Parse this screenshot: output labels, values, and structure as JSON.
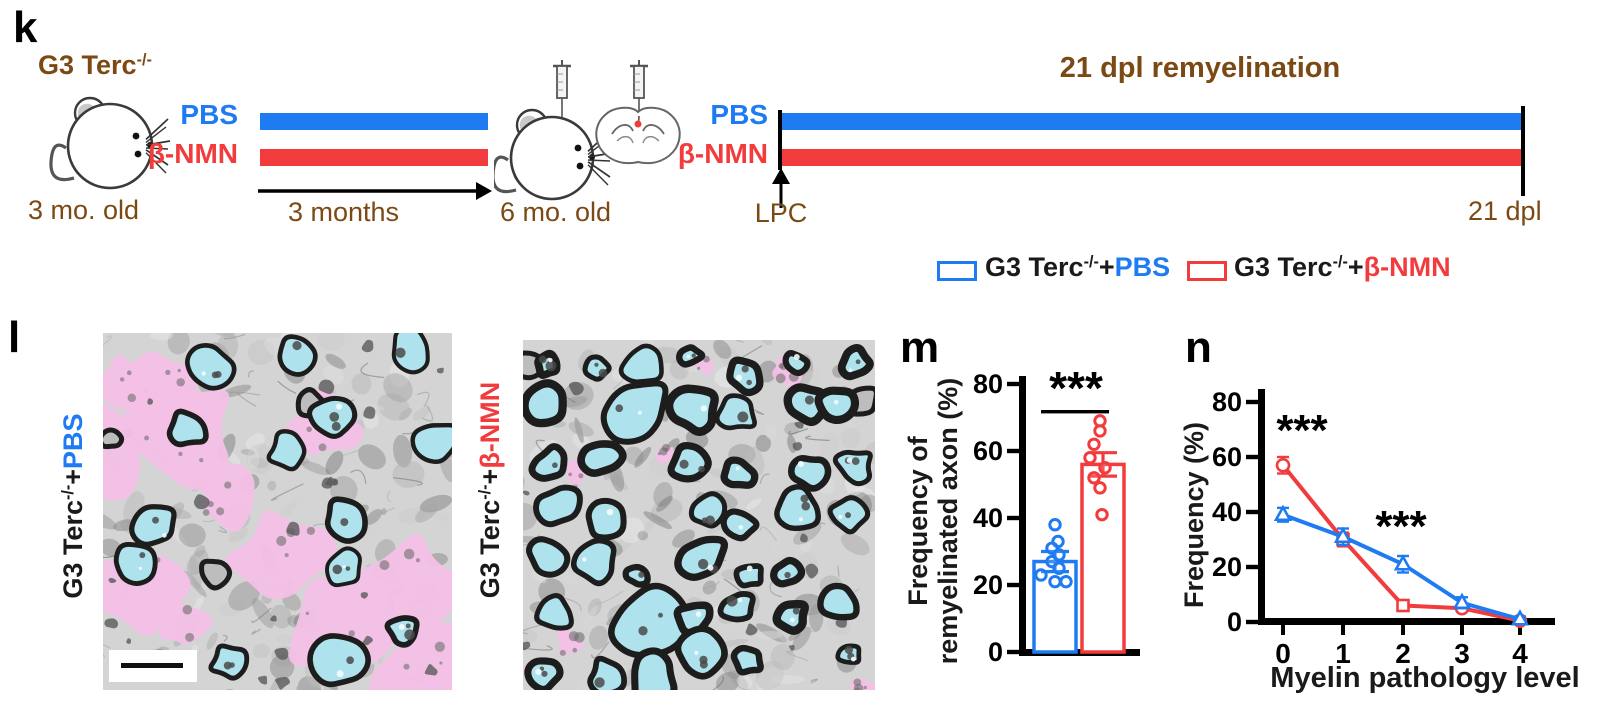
{
  "colors": {
    "blue": "#1e7bf2",
    "red": "#f23b3d",
    "brown": "#7b4a14",
    "black": "#1a1a1a",
    "axon_cyan": "#aee3ee",
    "pathology_pink": "#f3c0e6",
    "em_gray": "#d4d4d4"
  },
  "panel_k": {
    "label": "k",
    "genotype_base": "G3 Terc",
    "genotype_sup": "-/-",
    "pbs_label": "PBS",
    "nmn_label": "β-NMN",
    "start_age": "3 mo. old",
    "duration_label": "3 months",
    "mid_age": "6 mo. old",
    "injection_label": "LPC",
    "remyelination_title": "21 dpl remyelination",
    "end_label": "21 dpl"
  },
  "legend": {
    "items": [
      {
        "base": "G3 Terc",
        "sup": "-/-",
        "plus": "+",
        "group": "PBS"
      },
      {
        "base": "G3 Terc",
        "sup": "-/-",
        "plus": "+",
        "group": "β-NMN"
      }
    ]
  },
  "panel_l": {
    "label": "l",
    "micrographs": [
      {
        "base": "G3 Terc",
        "sup": "-/-",
        "plus": "+",
        "group": "PBS",
        "scale_bar": true
      },
      {
        "base": "G3 Terc",
        "sup": "-/-",
        "plus": "+",
        "group": "β-NMN",
        "scale_bar": false
      }
    ]
  },
  "panel_m": {
    "label": "m",
    "ylabel_line1": "Frequency of",
    "ylabel_line2": "remyelinated axon (%)",
    "significance": "***"
  },
  "panel_n": {
    "label": "n",
    "ylabel": "Frequency (%)",
    "xlabel": "Myelin pathology level",
    "significance_x0": "***",
    "significance_x2": "***"
  },
  "chart_data": [
    {
      "type": "bar",
      "panel": "m",
      "title": "",
      "ylabel": "Frequency of remyelinated axon (%)",
      "ylim": [
        0,
        80
      ],
      "yticks": [
        0,
        20,
        40,
        60,
        80
      ],
      "categories": [
        "G3 Terc-/-+PBS",
        "G3 Terc-/-+β-NMN"
      ],
      "values": [
        27,
        56
      ],
      "sem": [
        3,
        3.5
      ],
      "scatter_points": [
        [
          38,
          33,
          31,
          29,
          27,
          25,
          23,
          21,
          21
        ],
        [
          69,
          66,
          62,
          58,
          55,
          52,
          49,
          41
        ]
      ],
      "bar_style": "open",
      "significance": "***",
      "grid": false
    },
    {
      "type": "line",
      "panel": "n",
      "title": "",
      "xlabel": "Myelin pathology level",
      "ylabel": "Frequency (%)",
      "ylim": [
        0,
        80
      ],
      "yticks": [
        0,
        20,
        40,
        60,
        80
      ],
      "x": [
        0,
        1,
        2,
        3,
        4
      ],
      "xticklabels": [
        "0",
        "1",
        "2",
        "3",
        "4"
      ],
      "series": [
        {
          "name": "G3 Terc-/-+β-NMN",
          "color_key": "red",
          "markers": [
            "circle",
            "square",
            "square",
            "circle",
            "circle"
          ],
          "values": [
            57,
            30,
            6,
            5,
            0.5
          ],
          "sem": [
            3,
            2.5,
            1,
            1,
            0.5
          ]
        },
        {
          "name": "G3 Terc-/-+PBS",
          "color_key": "blue",
          "markers": [
            "triangle",
            "triangle",
            "triangle",
            "triangle",
            "triangle"
          ],
          "values": [
            39,
            31,
            21,
            7,
            1
          ],
          "sem": [
            2.5,
            3,
            3,
            2,
            1
          ]
        }
      ],
      "annotations": [
        {
          "text": "***",
          "near_x": 0
        },
        {
          "text": "***",
          "near_x": 1.5
        }
      ],
      "legend_position": "none",
      "grid": false
    }
  ]
}
